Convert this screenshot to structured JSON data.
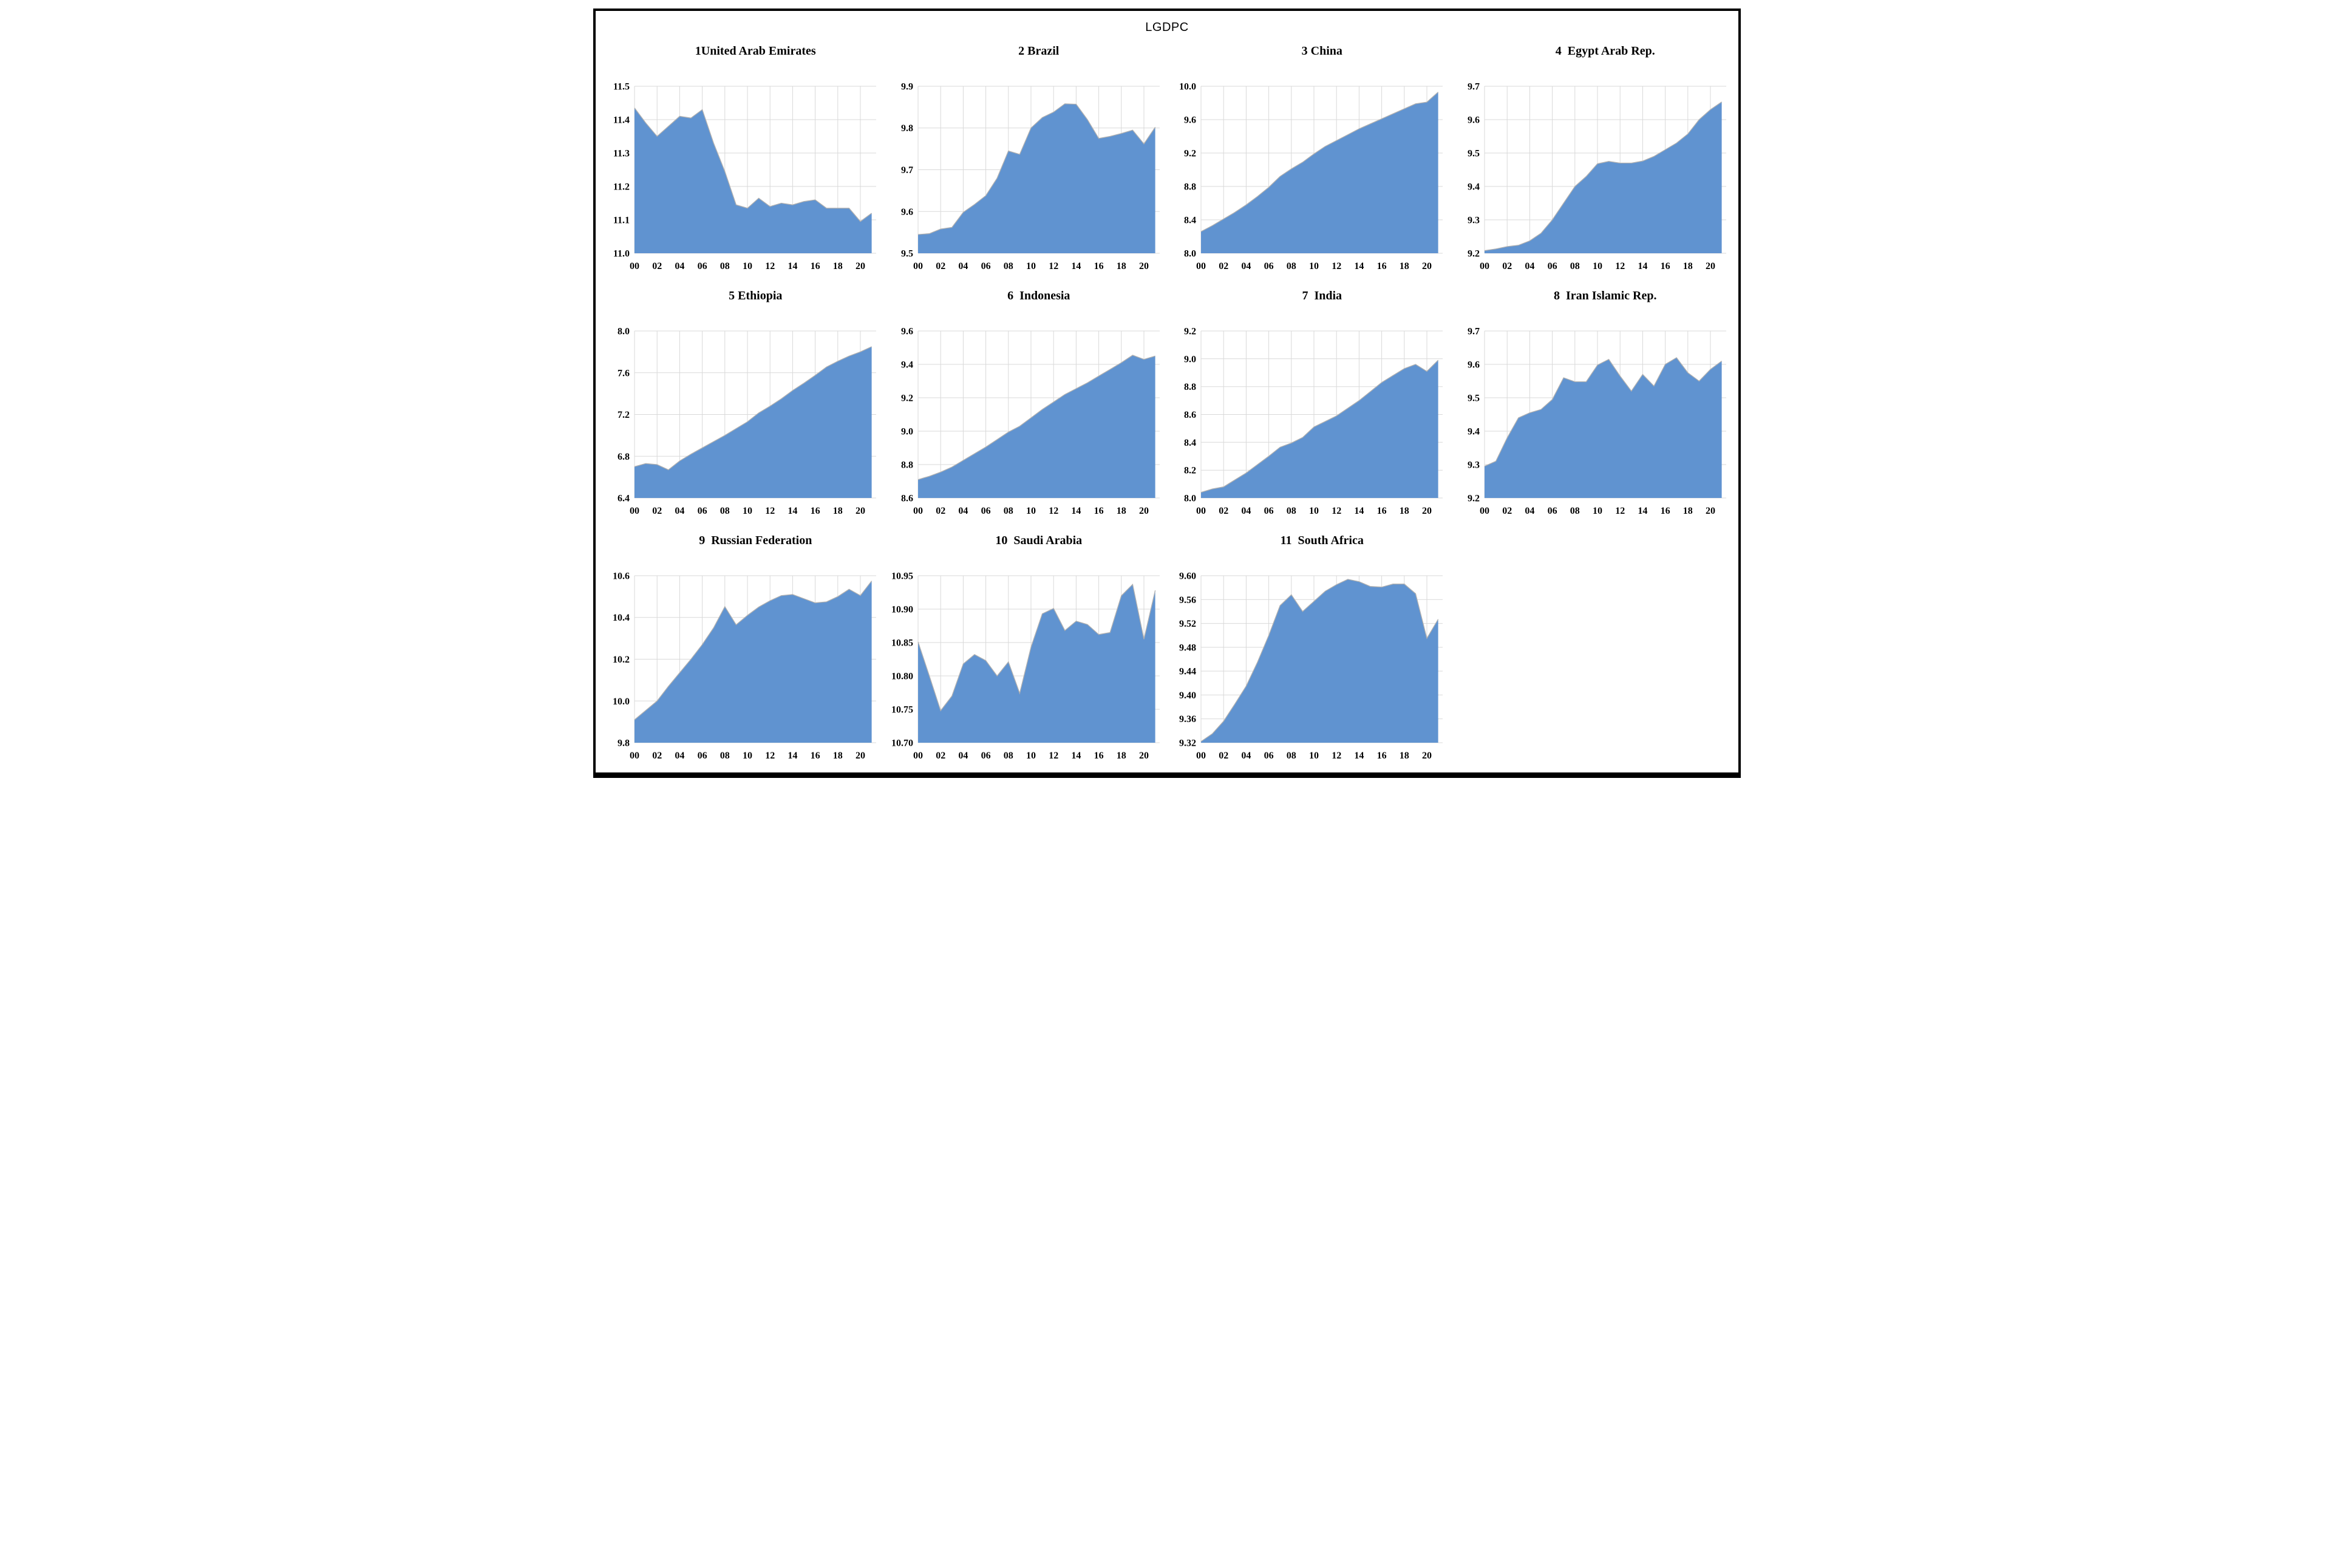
{
  "figure": {
    "title": "LGDPC"
  },
  "style": {
    "fill_color": "#6093d0",
    "edge_color": "#b0b0b0",
    "grid_color": "#d9d9d9",
    "frame_color": "#000000",
    "background": "#ffffff",
    "text_color": "#000000"
  },
  "chart_data": [
    {
      "type": "area",
      "panel": 1,
      "title": "1United Arab Emirates",
      "country": "United Arab Emirates",
      "x": [
        2000,
        2001,
        2002,
        2003,
        2004,
        2005,
        2006,
        2007,
        2008,
        2009,
        2010,
        2011,
        2012,
        2013,
        2014,
        2015,
        2016,
        2017,
        2018,
        2019,
        2020,
        2021
      ],
      "x_tick_labels": [
        "00",
        "02",
        "04",
        "06",
        "08",
        "10",
        "12",
        "14",
        "16",
        "18",
        "20"
      ],
      "y": [
        11.435,
        11.39,
        11.35,
        11.38,
        11.41,
        11.405,
        11.43,
        11.33,
        11.245,
        11.145,
        11.135,
        11.165,
        11.14,
        11.15,
        11.145,
        11.155,
        11.16,
        11.135,
        11.135,
        11.135,
        11.095,
        11.12
      ],
      "ylim": [
        11.0,
        11.5
      ],
      "yticks": [
        11.0,
        11.1,
        11.2,
        11.3,
        11.4,
        11.5
      ],
      "ytick_labels": [
        "11.0",
        "11.1",
        "11.2",
        "11.3",
        "11.4",
        "11.5"
      ]
    },
    {
      "type": "area",
      "panel": 2,
      "title": "2 Brazil",
      "country": "Brazil",
      "x": [
        2000,
        2001,
        2002,
        2003,
        2004,
        2005,
        2006,
        2007,
        2008,
        2009,
        2010,
        2011,
        2012,
        2013,
        2014,
        2015,
        2016,
        2017,
        2018,
        2019,
        2020,
        2021
      ],
      "x_tick_labels": [
        "00",
        "02",
        "04",
        "06",
        "08",
        "10",
        "12",
        "14",
        "16",
        "18",
        "20"
      ],
      "y": [
        9.545,
        9.547,
        9.558,
        9.562,
        9.598,
        9.617,
        9.638,
        9.68,
        9.745,
        9.737,
        9.8,
        9.825,
        9.838,
        9.858,
        9.857,
        9.82,
        9.775,
        9.78,
        9.787,
        9.795,
        9.762,
        9.802
      ],
      "ylim": [
        9.5,
        9.9
      ],
      "yticks": [
        9.5,
        9.6,
        9.7,
        9.8,
        9.9
      ],
      "ytick_labels": [
        "9.5",
        "9.6",
        "9.7",
        "9.8",
        "9.9"
      ]
    },
    {
      "type": "area",
      "panel": 3,
      "title": "3 China",
      "country": "China",
      "x": [
        2000,
        2001,
        2002,
        2003,
        2004,
        2005,
        2006,
        2007,
        2008,
        2009,
        2010,
        2011,
        2012,
        2013,
        2014,
        2015,
        2016,
        2017,
        2018,
        2019,
        2020,
        2021
      ],
      "x_tick_labels": [
        "00",
        "02",
        "04",
        "06",
        "08",
        "10",
        "12",
        "14",
        "16",
        "18",
        "20"
      ],
      "y": [
        8.26,
        8.33,
        8.41,
        8.49,
        8.58,
        8.68,
        8.79,
        8.92,
        9.01,
        9.09,
        9.19,
        9.28,
        9.35,
        9.42,
        9.49,
        9.55,
        9.61,
        9.67,
        9.73,
        9.79,
        9.81,
        9.93
      ],
      "ylim": [
        8.0,
        10.0
      ],
      "yticks": [
        8.0,
        8.4,
        8.8,
        9.2,
        9.6,
        10.0
      ],
      "ytick_labels": [
        "8.0",
        "8.4",
        "8.8",
        "9.2",
        "9.6",
        "10.0"
      ]
    },
    {
      "type": "area",
      "panel": 4,
      "title": "4  Egypt Arab Rep.",
      "country": "Egypt Arab Rep.",
      "x": [
        2000,
        2001,
        2002,
        2003,
        2004,
        2005,
        2006,
        2007,
        2008,
        2009,
        2010,
        2011,
        2012,
        2013,
        2014,
        2015,
        2016,
        2017,
        2018,
        2019,
        2020,
        2021
      ],
      "x_tick_labels": [
        "00",
        "02",
        "04",
        "06",
        "08",
        "10",
        "12",
        "14",
        "16",
        "18",
        "20"
      ],
      "y": [
        9.208,
        9.213,
        9.22,
        9.224,
        9.237,
        9.26,
        9.3,
        9.35,
        9.4,
        9.43,
        9.468,
        9.475,
        9.47,
        9.47,
        9.476,
        9.49,
        9.51,
        9.53,
        9.557,
        9.6,
        9.63,
        9.653
      ],
      "ylim": [
        9.2,
        9.7
      ],
      "yticks": [
        9.2,
        9.3,
        9.4,
        9.5,
        9.6,
        9.7
      ],
      "ytick_labels": [
        "9.2",
        "9.3",
        "9.4",
        "9.5",
        "9.6",
        "9.7"
      ]
    },
    {
      "type": "area",
      "panel": 5,
      "title": "5 Ethiopia",
      "country": "Ethiopia",
      "x": [
        2000,
        2001,
        2002,
        2003,
        2004,
        2005,
        2006,
        2007,
        2008,
        2009,
        2010,
        2011,
        2012,
        2013,
        2014,
        2015,
        2016,
        2017,
        2018,
        2019,
        2020,
        2021
      ],
      "x_tick_labels": [
        "00",
        "02",
        "04",
        "06",
        "08",
        "10",
        "12",
        "14",
        "16",
        "18",
        "20"
      ],
      "y": [
        6.7,
        6.73,
        6.72,
        6.67,
        6.755,
        6.82,
        6.88,
        6.94,
        7.0,
        7.065,
        7.13,
        7.215,
        7.28,
        7.35,
        7.43,
        7.5,
        7.575,
        7.655,
        7.71,
        7.76,
        7.8,
        7.85
      ],
      "ylim": [
        6.4,
        8.0
      ],
      "yticks": [
        6.4,
        6.8,
        7.2,
        7.6,
        8.0
      ],
      "ytick_labels": [
        "6.4",
        "6.8",
        "7.2",
        "7.6",
        "8.0"
      ]
    },
    {
      "type": "area",
      "panel": 6,
      "title": "6  Indonesia",
      "country": "Indonesia",
      "x": [
        2000,
        2001,
        2002,
        2003,
        2004,
        2005,
        2006,
        2007,
        2008,
        2009,
        2010,
        2011,
        2012,
        2013,
        2014,
        2015,
        2016,
        2017,
        2018,
        2019,
        2020,
        2021
      ],
      "x_tick_labels": [
        "00",
        "02",
        "04",
        "06",
        "08",
        "10",
        "12",
        "14",
        "16",
        "18",
        "20"
      ],
      "y": [
        8.71,
        8.73,
        8.755,
        8.785,
        8.825,
        8.865,
        8.905,
        8.95,
        8.995,
        9.03,
        9.08,
        9.13,
        9.175,
        9.22,
        9.255,
        9.29,
        9.33,
        9.37,
        9.41,
        9.455,
        9.43,
        9.45
      ],
      "ylim": [
        8.6,
        9.6
      ],
      "yticks": [
        8.6,
        8.8,
        9.0,
        9.2,
        9.4,
        9.6
      ],
      "ytick_labels": [
        "8.6",
        "8.8",
        "9.0",
        "9.2",
        "9.4",
        "9.6"
      ]
    },
    {
      "type": "area",
      "panel": 7,
      "title": "7  India",
      "country": "India",
      "x": [
        2000,
        2001,
        2002,
        2003,
        2004,
        2005,
        2006,
        2007,
        2008,
        2009,
        2010,
        2011,
        2012,
        2013,
        2014,
        2015,
        2016,
        2017,
        2018,
        2019,
        2020,
        2021
      ],
      "x_tick_labels": [
        "00",
        "02",
        "04",
        "06",
        "08",
        "10",
        "12",
        "14",
        "16",
        "18",
        "20"
      ],
      "y": [
        8.04,
        8.065,
        8.08,
        8.13,
        8.18,
        8.24,
        8.3,
        8.365,
        8.395,
        8.435,
        8.51,
        8.55,
        8.59,
        8.645,
        8.7,
        8.765,
        8.83,
        8.88,
        8.93,
        8.96,
        8.91,
        8.99
      ],
      "ylim": [
        8.0,
        9.2
      ],
      "yticks": [
        8.0,
        8.2,
        8.4,
        8.6,
        8.8,
        9.0,
        9.2
      ],
      "ytick_labels": [
        "8.0",
        "8.2",
        "8.4",
        "8.6",
        "8.8",
        "9.0",
        "9.2"
      ]
    },
    {
      "type": "area",
      "panel": 8,
      "title": "8  Iran Islamic Rep.",
      "country": "Iran Islamic Rep.",
      "x": [
        2000,
        2001,
        2002,
        2003,
        2004,
        2005,
        2006,
        2007,
        2008,
        2009,
        2010,
        2011,
        2012,
        2013,
        2014,
        2015,
        2016,
        2017,
        2018,
        2019,
        2020,
        2021
      ],
      "x_tick_labels": [
        "00",
        "02",
        "04",
        "06",
        "08",
        "10",
        "12",
        "14",
        "16",
        "18",
        "20"
      ],
      "y": [
        9.295,
        9.31,
        9.38,
        9.44,
        9.455,
        9.465,
        9.495,
        9.56,
        9.548,
        9.548,
        9.598,
        9.615,
        9.565,
        9.52,
        9.57,
        9.535,
        9.6,
        9.62,
        9.575,
        9.55,
        9.585,
        9.61
      ],
      "ylim": [
        9.2,
        9.7
      ],
      "yticks": [
        9.2,
        9.3,
        9.4,
        9.5,
        9.6,
        9.7
      ],
      "ytick_labels": [
        "9.2",
        "9.3",
        "9.4",
        "9.5",
        "9.6",
        "9.7"
      ]
    },
    {
      "type": "area",
      "panel": 9,
      "title": "9  Russian Federation",
      "country": "Russian Federation",
      "x": [
        2000,
        2001,
        2002,
        2003,
        2004,
        2005,
        2006,
        2007,
        2008,
        2009,
        2010,
        2011,
        2012,
        2013,
        2014,
        2015,
        2016,
        2017,
        2018,
        2019,
        2020,
        2021
      ],
      "x_tick_labels": [
        "00",
        "02",
        "04",
        "06",
        "08",
        "10",
        "12",
        "14",
        "16",
        "18",
        "20"
      ],
      "y": [
        9.91,
        9.955,
        10.0,
        10.07,
        10.135,
        10.2,
        10.27,
        10.35,
        10.452,
        10.365,
        10.41,
        10.45,
        10.48,
        10.505,
        10.51,
        10.49,
        10.47,
        10.475,
        10.5,
        10.535,
        10.505,
        10.575
      ],
      "ylim": [
        9.8,
        10.6
      ],
      "yticks": [
        9.8,
        10.0,
        10.2,
        10.4,
        10.6
      ],
      "ytick_labels": [
        "9.8",
        "10.0",
        "10.2",
        "10.4",
        "10.6"
      ]
    },
    {
      "type": "area",
      "panel": 10,
      "title": "10  Saudi Arabia",
      "country": "Saudi Arabia",
      "x": [
        2000,
        2001,
        2002,
        2003,
        2004,
        2005,
        2006,
        2007,
        2008,
        2009,
        2010,
        2011,
        2012,
        2013,
        2014,
        2015,
        2016,
        2017,
        2018,
        2019,
        2020,
        2021
      ],
      "x_tick_labels": [
        "00",
        "02",
        "04",
        "06",
        "08",
        "10",
        "12",
        "14",
        "16",
        "18",
        "20"
      ],
      "y": [
        10.851,
        10.8,
        10.748,
        10.77,
        10.818,
        10.832,
        10.823,
        10.8,
        10.821,
        10.774,
        10.843,
        10.893,
        10.901,
        10.868,
        10.882,
        10.877,
        10.862,
        10.865,
        10.92,
        10.937,
        10.855,
        10.928
      ],
      "ylim": [
        10.7,
        10.95
      ],
      "yticks": [
        10.7,
        10.75,
        10.8,
        10.85,
        10.9,
        10.95
      ],
      "ytick_labels": [
        "10.70",
        "10.75",
        "10.80",
        "10.85",
        "10.90",
        "10.95"
      ]
    },
    {
      "type": "area",
      "panel": 11,
      "title": "11  South Africa",
      "country": "South Africa",
      "x": [
        2000,
        2001,
        2002,
        2003,
        2004,
        2005,
        2006,
        2007,
        2008,
        2009,
        2010,
        2011,
        2012,
        2013,
        2014,
        2015,
        2016,
        2017,
        2018,
        2019,
        2020,
        2021
      ],
      "x_tick_labels": [
        "00",
        "02",
        "04",
        "06",
        "08",
        "10",
        "12",
        "14",
        "16",
        "18",
        "20"
      ],
      "y": [
        9.322,
        9.335,
        9.356,
        9.385,
        9.415,
        9.455,
        9.5,
        9.55,
        9.568,
        9.54,
        9.557,
        9.574,
        9.585,
        9.594,
        9.59,
        9.582,
        9.581,
        9.586,
        9.586,
        9.57,
        9.495,
        9.527
      ],
      "ylim": [
        9.32,
        9.6
      ],
      "yticks": [
        9.32,
        9.36,
        9.4,
        9.44,
        9.48,
        9.52,
        9.56,
        9.6
      ],
      "ytick_labels": [
        "9.32",
        "9.36",
        "9.40",
        "9.44",
        "9.48",
        "9.52",
        "9.56",
        "9.60"
      ]
    }
  ]
}
